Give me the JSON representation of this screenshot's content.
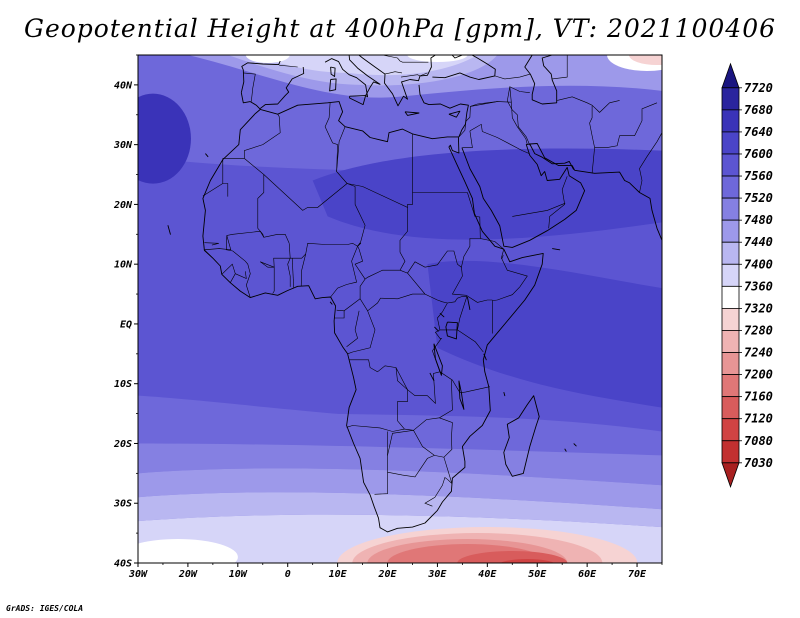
{
  "title": "Geopotential Height at 400hPa [gpm], VT: 2021100406",
  "credit": "GrADS: IGES/COLA",
  "map": {
    "projection": "latlon",
    "lon_range": [
      -30,
      75
    ],
    "lat_range": [
      -40,
      45
    ],
    "lon_ticks": [
      "30W",
      "20W",
      "10W",
      "0",
      "10E",
      "20E",
      "30E",
      "40E",
      "50E",
      "60E",
      "70E"
    ],
    "lon_tick_values": [
      -30,
      -20,
      -10,
      0,
      10,
      20,
      30,
      40,
      50,
      60,
      70
    ],
    "lat_ticks": [
      "40S",
      "30S",
      "20S",
      "10S",
      "EQ",
      "10N",
      "20N",
      "30N",
      "40N"
    ],
    "lat_tick_values": [
      -40,
      -30,
      -20,
      -10,
      0,
      10,
      20,
      30,
      40
    ]
  },
  "colorbar": {
    "levels": [
      "7720",
      "7680",
      "7640",
      "7600",
      "7560",
      "7520",
      "7480",
      "7440",
      "7400",
      "7360",
      "7320",
      "7280",
      "7240",
      "7200",
      "7160",
      "7120",
      "7080",
      "7030"
    ],
    "colors": [
      "#1a1580",
      "#2a249e",
      "#3a33b8",
      "#4a44c8",
      "#5c55d2",
      "#6e68da",
      "#8580e2",
      "#9d99ea",
      "#b9b7f1",
      "#d6d5f8",
      "#ffffff",
      "#f6d3d3",
      "#efb3b3",
      "#e79595",
      "#e07777",
      "#d85c5c",
      "#d04343",
      "#c23030",
      "#a82020"
    ]
  },
  "chart_data": {
    "type": "heatmap",
    "title": "Geopotential Height at 400hPa [gpm], VT: 2021100406",
    "variable": "Geopotential Height",
    "units": "gpm",
    "level": "400hPa",
    "valid_time": "2021100406",
    "x_range": [
      -30,
      75
    ],
    "y_range": [
      -40,
      45
    ],
    "contour_levels": [
      7030,
      7080,
      7120,
      7160,
      7200,
      7240,
      7280,
      7320,
      7360,
      7400,
      7440,
      7480,
      7520,
      7560,
      7600,
      7640,
      7680,
      7720
    ],
    "regions": [
      {
        "lon": [
          -30,
          75
        ],
        "lat": [
          -15,
          35
        ],
        "value": 7560
      },
      {
        "lon": [
          -30,
          -20
        ],
        "lat": [
          25,
          35
        ],
        "value": 7640
      },
      {
        "lon": [
          0,
          70
        ],
        "lat": [
          15,
          30
        ],
        "value": 7600
      },
      {
        "lon": [
          30,
          70
        ],
        "lat": [
          -10,
          10
        ],
        "value": 7600
      },
      {
        "lon": [
          -30,
          -10
        ],
        "lat": [
          -25,
          -15
        ],
        "value": 7520
      },
      {
        "lon": [
          -30,
          75
        ],
        "lat": [
          -30,
          -20
        ],
        "value": 7440
      },
      {
        "lon": [
          -30,
          75
        ],
        "lat": [
          -36,
          -30
        ],
        "value": 7360
      },
      {
        "lon": [
          15,
          55
        ],
        "lat": [
          -40,
          -34
        ],
        "value": 7120
      },
      {
        "lon": [
          40,
          55
        ],
        "lat": [
          -40,
          -38
        ],
        "value": 7030
      },
      {
        "lon": [
          -15,
          40
        ],
        "lat": [
          40,
          45
        ],
        "value": 7360
      },
      {
        "lon": [
          65,
          75
        ],
        "lat": [
          40,
          45
        ],
        "value": 7280
      }
    ]
  }
}
